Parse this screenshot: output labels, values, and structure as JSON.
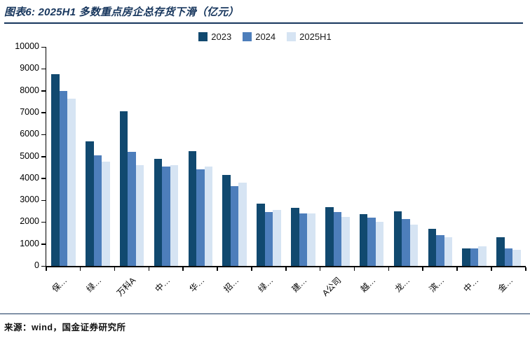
{
  "title": "图表6: 2025H1 多数重点房企总存货下滑（亿元）",
  "source_note": "来源：wind，国金证券研究所",
  "unit": "亿元",
  "colors": {
    "series_2023": "#11496F",
    "series_2024": "#4D7EBB",
    "series_2025H1": "#D6E4F3",
    "title_navy": "#17365D",
    "axis": "#000000"
  },
  "legend": [
    "2023",
    "2024",
    "2025H1"
  ],
  "chart_data": {
    "type": "bar",
    "title": "图表6: 2025H1 多数重点房企总存货下滑（亿元）",
    "categories": [
      "保…",
      "绿…",
      "万科A",
      "中…",
      "华…",
      "招…",
      "绿…",
      "建…",
      "A公司",
      "越…",
      "龙…",
      "滨…",
      "中…",
      "金…"
    ],
    "series": [
      {
        "name": "2023",
        "color_key": "series_2023",
        "values": [
          8750,
          5700,
          7050,
          4900,
          5250,
          4150,
          2850,
          2650,
          2700,
          2350,
          2500,
          1700,
          800,
          1300
        ]
      },
      {
        "name": "2024",
        "color_key": "series_2024",
        "values": [
          8000,
          5050,
          5200,
          4550,
          4400,
          3650,
          2450,
          2400,
          2450,
          2200,
          2150,
          1400,
          790,
          800
        ]
      },
      {
        "name": "2025H1",
        "color_key": "series_2025H1",
        "values": [
          7650,
          4750,
          4600,
          4600,
          4550,
          3800,
          2550,
          2400,
          2250,
          2000,
          1900,
          1300,
          900,
          750
        ]
      }
    ],
    "ylabel": "",
    "xlabel": "",
    "ylim": [
      0,
      10000
    ],
    "ytick_step": 1000,
    "grid": false,
    "legend_position": "top-center",
    "x_label_rotation_deg": 45
  }
}
